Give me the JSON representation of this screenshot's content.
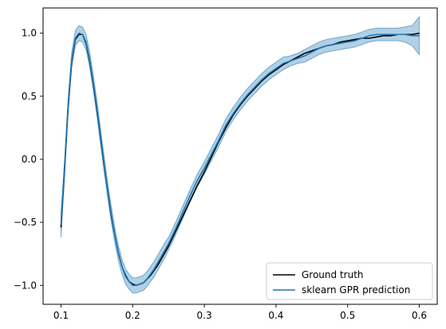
{
  "chart_data": {
    "type": "line",
    "xlim": [
      0.075,
      0.625
    ],
    "ylim": [
      -1.15,
      1.2
    ],
    "xticks": [
      0.1,
      0.2,
      0.3,
      0.4,
      0.5,
      0.6
    ],
    "xtick_labels": [
      "0.1",
      "0.2",
      "0.3",
      "0.4",
      "0.5",
      "0.6"
    ],
    "yticks": [
      1.0,
      0.5,
      0.0,
      -0.5,
      -1.0
    ],
    "ytick_labels": [
      "1.0",
      "0.5",
      "0.0",
      "−0.5",
      "−1.0"
    ],
    "grid": false,
    "legend": {
      "placement": "lower-right",
      "entries": [
        {
          "label": "Ground truth",
          "color": "#000000"
        },
        {
          "label": "sklearn GPR prediction",
          "color": "#1f77b4"
        }
      ]
    },
    "colors": {
      "truth": "#000000",
      "prediction": "#1f77b4",
      "band": "#1f77b4",
      "band_opacity": 0.35
    },
    "series": [
      {
        "name": "Ground truth",
        "x": [
          0.1,
          0.105,
          0.11,
          0.115,
          0.12,
          0.125,
          0.13,
          0.135,
          0.14,
          0.145,
          0.15,
          0.155,
          0.16,
          0.165,
          0.17,
          0.175,
          0.18,
          0.185,
          0.19,
          0.195,
          0.2,
          0.205,
          0.21,
          0.215,
          0.22,
          0.225,
          0.23,
          0.235,
          0.24,
          0.245,
          0.25,
          0.26,
          0.27,
          0.28,
          0.29,
          0.3,
          0.31,
          0.32,
          0.33,
          0.34,
          0.35,
          0.36,
          0.37,
          0.38,
          0.39,
          0.4,
          0.41,
          0.42,
          0.43,
          0.44,
          0.45,
          0.46,
          0.47,
          0.48,
          0.49,
          0.5,
          0.51,
          0.52,
          0.53,
          0.54,
          0.55,
          0.56,
          0.57,
          0.58,
          0.59,
          0.6
        ],
        "y": [
          -0.54,
          -0.08,
          0.42,
          0.78,
          0.95,
          0.99,
          0.99,
          0.92,
          0.78,
          0.6,
          0.4,
          0.18,
          -0.04,
          -0.24,
          -0.44,
          -0.6,
          -0.74,
          -0.85,
          -0.92,
          -0.97,
          -0.99,
          -1.0,
          -0.99,
          -0.98,
          -0.95,
          -0.92,
          -0.88,
          -0.84,
          -0.79,
          -0.74,
          -0.69,
          -0.57,
          -0.45,
          -0.33,
          -0.21,
          -0.1,
          0.02,
          0.14,
          0.25,
          0.35,
          0.43,
          0.5,
          0.56,
          0.62,
          0.67,
          0.71,
          0.75,
          0.78,
          0.81,
          0.84,
          0.86,
          0.88,
          0.9,
          0.91,
          0.93,
          0.94,
          0.95,
          0.96,
          0.96,
          0.97,
          0.98,
          0.98,
          0.99,
          0.99,
          0.99,
          1.0
        ]
      },
      {
        "name": "sklearn GPR prediction",
        "x": [
          0.1,
          0.105,
          0.11,
          0.115,
          0.12,
          0.125,
          0.13,
          0.135,
          0.14,
          0.145,
          0.15,
          0.155,
          0.16,
          0.165,
          0.17,
          0.175,
          0.18,
          0.185,
          0.19,
          0.195,
          0.2,
          0.205,
          0.21,
          0.215,
          0.22,
          0.225,
          0.23,
          0.235,
          0.24,
          0.245,
          0.25,
          0.26,
          0.27,
          0.28,
          0.29,
          0.3,
          0.31,
          0.32,
          0.33,
          0.34,
          0.35,
          0.36,
          0.37,
          0.38,
          0.39,
          0.4,
          0.41,
          0.42,
          0.43,
          0.44,
          0.45,
          0.46,
          0.47,
          0.48,
          0.49,
          0.5,
          0.51,
          0.52,
          0.53,
          0.54,
          0.55,
          0.56,
          0.57,
          0.58,
          0.59,
          0.6
        ],
        "y": [
          -0.52,
          -0.06,
          0.43,
          0.79,
          0.96,
          1.0,
          0.99,
          0.93,
          0.79,
          0.61,
          0.41,
          0.19,
          -0.03,
          -0.24,
          -0.43,
          -0.6,
          -0.74,
          -0.85,
          -0.93,
          -0.97,
          -1.0,
          -1.0,
          -0.99,
          -0.98,
          -0.95,
          -0.91,
          -0.87,
          -0.82,
          -0.77,
          -0.72,
          -0.67,
          -0.55,
          -0.42,
          -0.29,
          -0.17,
          -0.07,
          0.04,
          0.15,
          0.27,
          0.36,
          0.44,
          0.51,
          0.57,
          0.63,
          0.68,
          0.72,
          0.76,
          0.78,
          0.8,
          0.82,
          0.85,
          0.88,
          0.9,
          0.91,
          0.92,
          0.93,
          0.94,
          0.96,
          0.98,
          0.99,
          0.99,
          0.99,
          0.99,
          0.99,
          0.98,
          0.98
        ],
        "lower": [
          -0.62,
          -0.12,
          0.37,
          0.73,
          0.9,
          0.94,
          0.93,
          0.87,
          0.73,
          0.55,
          0.35,
          0.13,
          -0.09,
          -0.3,
          -0.49,
          -0.66,
          -0.8,
          -0.91,
          -0.99,
          -1.03,
          -1.06,
          -1.06,
          -1.05,
          -1.04,
          -1.01,
          -0.97,
          -0.93,
          -0.88,
          -0.83,
          -0.78,
          -0.72,
          -0.6,
          -0.47,
          -0.34,
          -0.22,
          -0.12,
          -0.01,
          0.1,
          0.22,
          0.31,
          0.39,
          0.46,
          0.52,
          0.58,
          0.63,
          0.67,
          0.71,
          0.74,
          0.76,
          0.77,
          0.8,
          0.83,
          0.85,
          0.86,
          0.87,
          0.88,
          0.89,
          0.91,
          0.93,
          0.94,
          0.94,
          0.94,
          0.94,
          0.93,
          0.9,
          0.83
        ],
        "upper": [
          -0.42,
          0.0,
          0.49,
          0.85,
          1.02,
          1.06,
          1.05,
          0.99,
          0.85,
          0.67,
          0.47,
          0.25,
          0.03,
          -0.18,
          -0.37,
          -0.54,
          -0.68,
          -0.79,
          -0.87,
          -0.91,
          -0.94,
          -0.94,
          -0.93,
          -0.92,
          -0.89,
          -0.85,
          -0.81,
          -0.76,
          -0.71,
          -0.66,
          -0.62,
          -0.5,
          -0.37,
          -0.24,
          -0.12,
          -0.02,
          0.09,
          0.2,
          0.32,
          0.41,
          0.49,
          0.56,
          0.62,
          0.68,
          0.73,
          0.77,
          0.81,
          0.82,
          0.84,
          0.87,
          0.9,
          0.93,
          0.95,
          0.96,
          0.97,
          0.98,
          0.99,
          1.01,
          1.03,
          1.04,
          1.04,
          1.04,
          1.04,
          1.05,
          1.06,
          1.13
        ]
      }
    ]
  }
}
